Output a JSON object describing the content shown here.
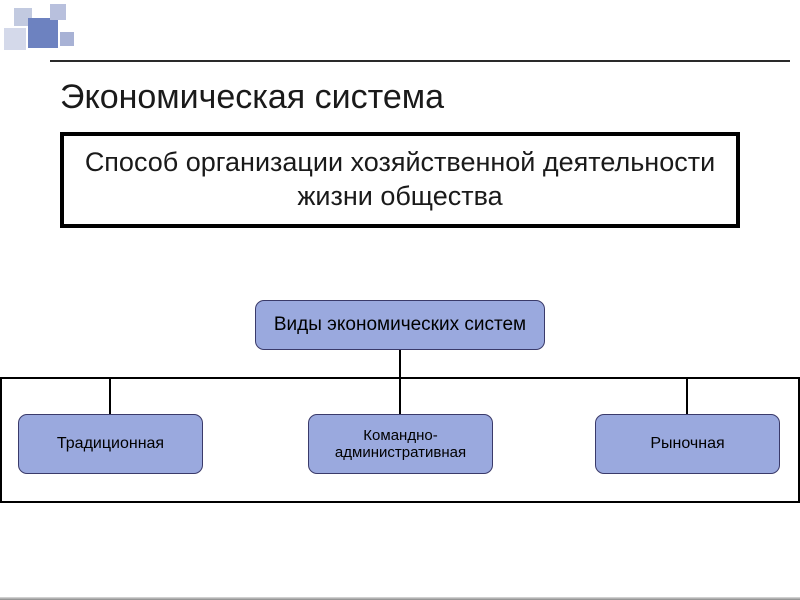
{
  "title": "Экономическая система",
  "definition": "Способ организации хозяйственной деятельности жизни общества",
  "diagram": {
    "root": {
      "label": "Виды экономических систем",
      "bg_color": "#9aa9de"
    },
    "children": [
      {
        "label": "Традиционная",
        "bg_color": "#9aa9de"
      },
      {
        "label": "Командно-административная",
        "bg_color": "#9aa9de"
      },
      {
        "label": "Рыночная",
        "bg_color": "#9aa9de"
      }
    ],
    "node_border_color": "#3a3a6a",
    "connector_color": "#000000"
  },
  "styling": {
    "background": "#ffffff",
    "title_fontsize": 34,
    "definition_fontsize": 27,
    "definition_border": "#000000",
    "accent_squares": [
      "#d4d9ea",
      "#c2cae0",
      "#6d82c0",
      "#b8c0dd",
      "#a8b2d5"
    ]
  }
}
